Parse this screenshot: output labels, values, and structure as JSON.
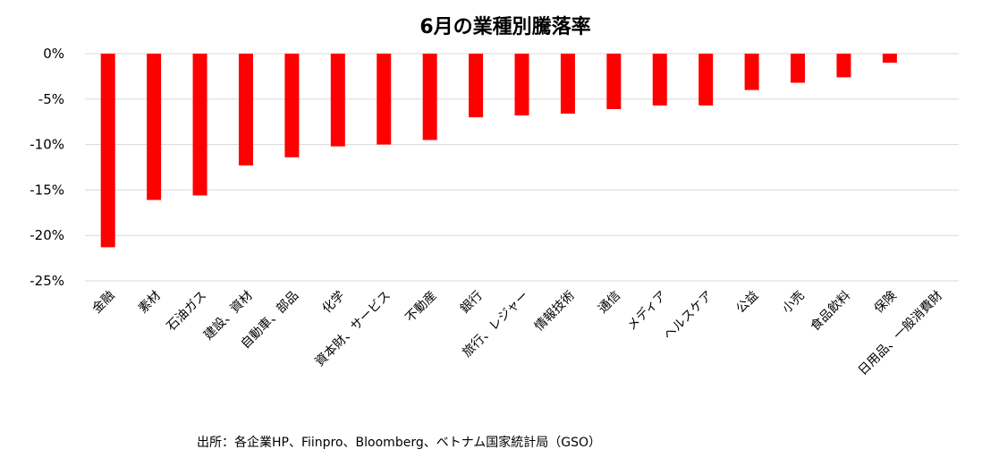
{
  "chart_data": {
    "type": "bar",
    "title": "6月の業種別騰落率",
    "categories": [
      "金融",
      "素材",
      "石油ガス",
      "建設、資材",
      "自動車、部品",
      "化学",
      "資本財、サービス",
      "不動産",
      "銀行",
      "旅行、レジャー",
      "情報技術",
      "通信",
      "メディア",
      "ヘルスケア",
      "公益",
      "小売",
      "食品飲料",
      "保険",
      "日用品、一般消費財"
    ],
    "values": [
      -21.3,
      -16.1,
      -15.6,
      -12.3,
      -11.4,
      -10.2,
      -10.0,
      -9.5,
      -7.0,
      -6.8,
      -6.6,
      -6.1,
      -5.7,
      -5.7,
      -4.0,
      -3.2,
      -2.6,
      -1.0,
      0.0
    ],
    "ylim": [
      -25,
      0
    ],
    "yticks": [
      "0%",
      "-5%",
      "-10%",
      "-15%",
      "-20%",
      "-25%"
    ],
    "grid": true,
    "bar_color": "#ff0000",
    "xlabel": "",
    "ylabel": ""
  },
  "source": "出所：各企業HP、Fiinpro、Bloomberg、ベトナム国家統計局（GSO）"
}
